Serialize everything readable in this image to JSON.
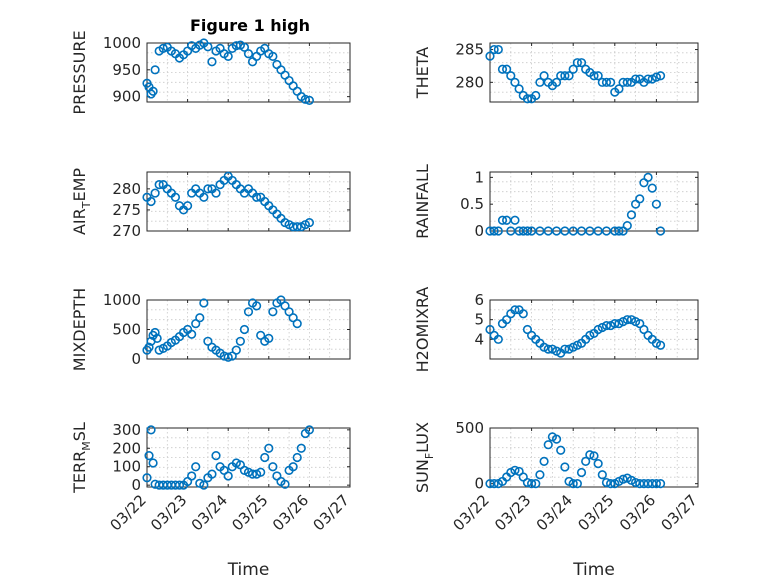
{
  "figure": {
    "title": "Figure 1 high"
  },
  "colors": {
    "marker": "#0072BD",
    "axis": "#262626",
    "background": "#ffffff"
  },
  "chart_data": [
    {
      "type": "scatter",
      "id": "pressure",
      "ylabel": "PRESSURE",
      "ylabel_sub": "",
      "ylim": [
        890,
        1000
      ],
      "yticks": [
        "900",
        "950",
        "1000"
      ],
      "xlabel": "",
      "xticks": [],
      "x": [
        0,
        0.05,
        0.1,
        0.15,
        0.2,
        0.3,
        0.4,
        0.5,
        0.6,
        0.7,
        0.8,
        0.9,
        1.0,
        1.1,
        1.2,
        1.3,
        1.4,
        1.5,
        1.6,
        1.7,
        1.8,
        1.9,
        2.0,
        2.1,
        2.2,
        2.3,
        2.4,
        2.5,
        2.6,
        2.7,
        2.8,
        2.9,
        3.0,
        3.1,
        3.2,
        3.3,
        3.4,
        3.5,
        3.6,
        3.7,
        3.8,
        3.9,
        4.0
      ],
      "values": [
        925,
        918,
        905,
        910,
        950,
        985,
        990,
        992,
        985,
        980,
        972,
        978,
        985,
        995,
        990,
        996,
        1000,
        993,
        965,
        985,
        990,
        980,
        975,
        990,
        995,
        996,
        992,
        980,
        965,
        975,
        985,
        990,
        980,
        975,
        960,
        950,
        940,
        930,
        920,
        910,
        900,
        895,
        893
      ]
    },
    {
      "type": "scatter",
      "id": "theta",
      "ylabel": "THETA",
      "ylabel_sub": "",
      "ylim": [
        277,
        286
      ],
      "yticks": [
        "280",
        "285"
      ],
      "xlabel": "",
      "xticks": [],
      "x": [
        0,
        0.1,
        0.2,
        0.3,
        0.4,
        0.5,
        0.6,
        0.7,
        0.8,
        0.9,
        1.0,
        1.1,
        1.2,
        1.3,
        1.4,
        1.5,
        1.6,
        1.7,
        1.8,
        1.9,
        2.0,
        2.1,
        2.2,
        2.3,
        2.4,
        2.5,
        2.6,
        2.7,
        2.8,
        2.9,
        3.0,
        3.1,
        3.2,
        3.3,
        3.4,
        3.5,
        3.6,
        3.7,
        3.8,
        3.9,
        4.0,
        4.1
      ],
      "values": [
        284,
        285,
        285,
        282,
        282,
        281,
        280,
        279,
        278,
        277.5,
        277.5,
        278,
        280,
        281,
        280,
        279.5,
        280,
        281,
        281,
        281,
        282,
        283,
        283,
        282,
        281.5,
        281,
        281,
        280,
        280,
        280,
        278.5,
        279,
        280,
        280,
        280,
        280.5,
        280.5,
        280,
        280.5,
        280.5,
        280.8,
        281
      ]
    },
    {
      "type": "scatter",
      "id": "air_temp",
      "ylabel": "AIR",
      "ylabel_sub": "T",
      "ylabel_suffix": "EMP",
      "ylim": [
        270,
        284
      ],
      "yticks": [
        "270",
        "275",
        "280"
      ],
      "xlabel": "",
      "xticks": [],
      "x": [
        0,
        0.1,
        0.2,
        0.3,
        0.4,
        0.5,
        0.6,
        0.7,
        0.8,
        0.9,
        1.0,
        1.1,
        1.2,
        1.3,
        1.4,
        1.5,
        1.6,
        1.7,
        1.8,
        1.9,
        2.0,
        2.1,
        2.2,
        2.3,
        2.4,
        2.5,
        2.6,
        2.7,
        2.8,
        2.9,
        3.0,
        3.1,
        3.2,
        3.3,
        3.4,
        3.5,
        3.6,
        3.7,
        3.8,
        3.9,
        4.0
      ],
      "values": [
        278,
        277,
        279,
        281,
        281,
        280,
        279,
        278,
        276,
        275,
        276,
        279,
        280,
        279,
        278,
        280,
        280,
        279,
        281,
        282,
        283,
        282,
        281,
        280,
        279,
        280,
        279,
        278,
        278,
        277,
        276,
        275,
        274,
        273,
        272,
        271.5,
        271,
        271,
        271,
        271.5,
        272
      ]
    },
    {
      "type": "scatter",
      "id": "rainfall",
      "ylabel": "RAINFALL",
      "ylabel_sub": "",
      "ylim": [
        0,
        1.1
      ],
      "yticks": [
        "0",
        "0.5",
        "1"
      ],
      "xlabel": "",
      "xticks": [],
      "x": [
        0,
        0.1,
        0.2,
        0.3,
        0.4,
        0.5,
        0.6,
        0.7,
        0.8,
        0.9,
        1.0,
        1.2,
        1.4,
        1.6,
        1.8,
        2.0,
        2.2,
        2.4,
        2.6,
        2.8,
        3.0,
        3.1,
        3.2,
        3.3,
        3.4,
        3.5,
        3.6,
        3.7,
        3.8,
        3.9,
        4.0,
        4.1
      ],
      "values": [
        0,
        0,
        0,
        0.2,
        0.2,
        0,
        0.2,
        0,
        0,
        0,
        0,
        0,
        0,
        0,
        0,
        0,
        0,
        0,
        0,
        0,
        0,
        0,
        0,
        0.1,
        0.3,
        0.5,
        0.6,
        0.9,
        1.0,
        0.8,
        0.5,
        0
      ]
    },
    {
      "type": "scatter",
      "id": "mixdepth",
      "ylabel": "MIXDEPTH",
      "ylabel_sub": "",
      "ylim": [
        0,
        1000
      ],
      "yticks": [
        "0",
        "500",
        "1000"
      ],
      "xlabel": "",
      "xticks": [],
      "x": [
        0,
        0.05,
        0.1,
        0.15,
        0.2,
        0.25,
        0.3,
        0.4,
        0.5,
        0.6,
        0.7,
        0.8,
        0.9,
        1.0,
        1.1,
        1.2,
        1.3,
        1.4,
        1.5,
        1.6,
        1.7,
        1.8,
        1.9,
        2.0,
        2.1,
        2.2,
        2.3,
        2.4,
        2.5,
        2.6,
        2.7,
        2.8,
        2.9,
        3.0,
        3.1,
        3.2,
        3.3,
        3.4,
        3.5,
        3.6,
        3.7
      ],
      "values": [
        150,
        200,
        300,
        400,
        450,
        350,
        150,
        180,
        220,
        280,
        320,
        380,
        450,
        500,
        420,
        600,
        700,
        950,
        300,
        200,
        150,
        100,
        50,
        30,
        50,
        150,
        300,
        500,
        800,
        950,
        900,
        400,
        300,
        350,
        800,
        950,
        1000,
        900,
        800,
        700,
        600
      ]
    },
    {
      "type": "scatter",
      "id": "h2omixra",
      "ylabel": "H2OMIXRA",
      "ylabel_sub": "",
      "ylim": [
        3,
        6
      ],
      "yticks": [
        "4",
        "5",
        "6"
      ],
      "xlabel": "",
      "xticks": [],
      "x": [
        0,
        0.1,
        0.2,
        0.3,
        0.4,
        0.5,
        0.6,
        0.7,
        0.8,
        0.9,
        1.0,
        1.1,
        1.2,
        1.3,
        1.4,
        1.5,
        1.6,
        1.7,
        1.8,
        1.9,
        2.0,
        2.1,
        2.2,
        2.3,
        2.4,
        2.5,
        2.6,
        2.7,
        2.8,
        2.9,
        3.0,
        3.1,
        3.2,
        3.3,
        3.4,
        3.5,
        3.6,
        3.7,
        3.8,
        3.9,
        4.0,
        4.1
      ],
      "values": [
        4.5,
        4.2,
        4.0,
        4.8,
        5.0,
        5.3,
        5.5,
        5.5,
        5.3,
        4.5,
        4.2,
        4.0,
        3.8,
        3.6,
        3.5,
        3.5,
        3.4,
        3.3,
        3.5,
        3.5,
        3.6,
        3.7,
        3.8,
        4.0,
        4.2,
        4.3,
        4.5,
        4.6,
        4.7,
        4.7,
        4.8,
        4.8,
        4.9,
        5.0,
        5.0,
        4.9,
        4.8,
        4.5,
        4.2,
        4.0,
        3.8,
        3.7
      ]
    },
    {
      "type": "scatter",
      "id": "terr_msl",
      "ylabel": "TERR",
      "ylabel_sub": "M",
      "ylabel_suffix": "SL",
      "ylim": [
        -10,
        310
      ],
      "yticks": [
        "0",
        "100",
        "200",
        "300"
      ],
      "xlabel": "Time",
      "xticks": [
        "03/22",
        "03/23",
        "03/24",
        "03/25",
        "03/26",
        "03/27"
      ],
      "x": [
        0,
        0.05,
        0.1,
        0.15,
        0.2,
        0.3,
        0.4,
        0.5,
        0.6,
        0.7,
        0.8,
        0.9,
        1.0,
        1.1,
        1.2,
        1.3,
        1.4,
        1.5,
        1.6,
        1.7,
        1.8,
        1.9,
        2.0,
        2.1,
        2.2,
        2.3,
        2.4,
        2.5,
        2.6,
        2.7,
        2.8,
        2.9,
        3.0,
        3.1,
        3.2,
        3.3,
        3.4,
        3.5,
        3.6,
        3.7,
        3.8,
        3.9,
        4.0
      ],
      "values": [
        40,
        160,
        300,
        120,
        5,
        0,
        0,
        0,
        0,
        0,
        0,
        0,
        20,
        50,
        100,
        10,
        0,
        40,
        60,
        160,
        100,
        80,
        50,
        100,
        120,
        110,
        80,
        70,
        60,
        60,
        70,
        150,
        200,
        100,
        50,
        20,
        5,
        80,
        100,
        150,
        200,
        280,
        300
      ]
    },
    {
      "type": "scatter",
      "id": "sun_flux",
      "ylabel": "SUN",
      "ylabel_sub": "F",
      "ylabel_suffix": "LUX",
      "ylim": [
        -30,
        500
      ],
      "yticks": [
        "0",
        "500"
      ],
      "xlabel": "Time",
      "xticks": [
        "03/22",
        "03/23",
        "03/24",
        "03/25",
        "03/26",
        "03/27"
      ],
      "x": [
        0,
        0.1,
        0.2,
        0.3,
        0.4,
        0.5,
        0.6,
        0.7,
        0.8,
        0.9,
        1.0,
        1.1,
        1.2,
        1.3,
        1.4,
        1.5,
        1.6,
        1.7,
        1.8,
        1.9,
        2.0,
        2.1,
        2.2,
        2.3,
        2.4,
        2.5,
        2.6,
        2.7,
        2.8,
        2.9,
        3.0,
        3.1,
        3.2,
        3.3,
        3.4,
        3.5,
        3.6,
        3.7,
        3.8,
        3.9,
        4.0,
        4.1
      ],
      "values": [
        0,
        0,
        0,
        20,
        60,
        100,
        120,
        110,
        60,
        10,
        0,
        0,
        80,
        200,
        350,
        420,
        400,
        300,
        150,
        20,
        0,
        0,
        100,
        200,
        260,
        250,
        180,
        80,
        10,
        0,
        0,
        20,
        40,
        50,
        30,
        10,
        0,
        0,
        0,
        0,
        0,
        0
      ]
    }
  ]
}
